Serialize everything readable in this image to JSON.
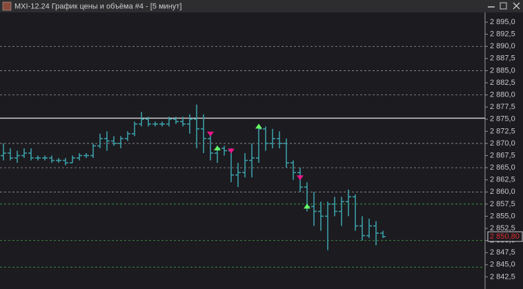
{
  "window_title": "MXI-12.24 График цены и объёма #4 - [5 минут]",
  "chart_data": {
    "type": "ohlc",
    "color": "#3a9fa8",
    "ylim": [
      2840,
      2897
    ],
    "yticks": [
      {
        "value": 2895,
        "label": "2 895,0"
      },
      {
        "value": 2892.5,
        "label": "2 892,5"
      },
      {
        "value": 2890,
        "label": "2 890,0"
      },
      {
        "value": 2887.5,
        "label": "2 887,5"
      },
      {
        "value": 2885,
        "label": "2 885,0"
      },
      {
        "value": 2882.5,
        "label": "2 882,5"
      },
      {
        "value": 2880,
        "label": "2 880,0"
      },
      {
        "value": 2877.5,
        "label": "2 877,5"
      },
      {
        "value": 2875,
        "label": "2 875,0"
      },
      {
        "value": 2872.5,
        "label": "2 872,5"
      },
      {
        "value": 2870,
        "label": "2 870,0"
      },
      {
        "value": 2867.5,
        "label": "2 867,5"
      },
      {
        "value": 2865,
        "label": "2 865,0"
      },
      {
        "value": 2862.5,
        "label": "2 862,5"
      },
      {
        "value": 2860,
        "label": "2 860,0"
      },
      {
        "value": 2857.5,
        "label": "2 857,5"
      },
      {
        "value": 2855,
        "label": "2 855,0"
      },
      {
        "value": 2852.5,
        "label": "2 852,5"
      },
      {
        "value": 2850,
        "label": "2 850,0"
      },
      {
        "value": 2847.5,
        "label": "2 847,5"
      },
      {
        "value": 2845,
        "label": "2 845,0"
      },
      {
        "value": 2842.5,
        "label": "2 842,5"
      }
    ],
    "grid_lines": [
      2890,
      2885,
      2880,
      2870,
      2865,
      2860
    ],
    "levels": [
      {
        "value": 2875.2,
        "color": "#d0d0d0",
        "dashed": false
      },
      {
        "value": 2857.5,
        "color": "#3f9a3f",
        "dashed": true
      },
      {
        "value": 2850,
        "color": "#3f9a3f",
        "dashed": true
      },
      {
        "value": 2844.5,
        "color": "#3f9a3f",
        "dashed": true
      }
    ],
    "last_price": {
      "value": 2850.8,
      "label": "2 850,80"
    },
    "open": [
      2867.5,
      2868,
      2867,
      2867.5,
      2868,
      2867,
      2867,
      2867,
      2866.5,
      2866.5,
      2866,
      2867,
      2867.5,
      2867.5,
      2869.5,
      2871,
      2870.5,
      2870,
      2871,
      2872,
      2874,
      2875,
      2874,
      2874,
      2874,
      2875,
      2874.5,
      2874,
      2875,
      2873,
      2871,
      2868,
      2869,
      2868.5,
      2863.5,
      2864,
      2866.5,
      2867,
      2873,
      2870,
      2871,
      2870,
      2866,
      2864,
      2861,
      2857,
      2856,
      2855,
      2857.5,
      2856,
      2858,
      2859,
      2853,
      2851,
      2853,
      2851.5
    ],
    "high": [
      2870,
      2869,
      2868.5,
      2869,
      2869,
      2867.5,
      2867.5,
      2867.5,
      2867,
      2867,
      2867.5,
      2868,
      2868,
      2870,
      2872,
      2872.5,
      2871.5,
      2871.5,
      2872.5,
      2874.5,
      2876.5,
      2875.5,
      2874.5,
      2874.5,
      2875.5,
      2875.5,
      2875.5,
      2876,
      2878,
      2876,
      2872,
      2869.5,
      2869.5,
      2869,
      2866,
      2868,
      2870,
      2873.5,
      2873.5,
      2873,
      2872.5,
      2871,
      2866.5,
      2865,
      2862,
      2860,
      2858,
      2858,
      2859,
      2859,
      2860.5,
      2859.5,
      2855,
      2854.5,
      2854,
      2852
    ],
    "low": [
      2866.5,
      2866.5,
      2866,
      2867,
      2866.5,
      2866.5,
      2866.5,
      2866,
      2866,
      2865.5,
      2866,
      2866.5,
      2867,
      2867,
      2869,
      2868.5,
      2869.5,
      2869,
      2870.5,
      2871.5,
      2873.5,
      2873.5,
      2873.5,
      2873.5,
      2873.5,
      2874,
      2873.5,
      2872,
      2869,
      2868,
      2866.5,
      2866,
      2867.5,
      2862,
      2861,
      2863,
      2863,
      2866,
      2868.5,
      2869,
      2869,
      2865,
      2862.5,
      2860,
      2856,
      2853,
      2852,
      2848,
      2855,
      2853,
      2855,
      2852,
      2850,
      2850.5,
      2849,
      2850.5
    ],
    "close": [
      2868,
      2867,
      2867.5,
      2868,
      2867,
      2867,
      2867,
      2866.5,
      2866.5,
      2866,
      2867,
      2867.5,
      2867.5,
      2869.5,
      2871,
      2870.5,
      2870,
      2871,
      2872,
      2874,
      2875,
      2874,
      2874,
      2874,
      2875,
      2874.5,
      2874,
      2875,
      2873,
      2871,
      2868,
      2869,
      2868.5,
      2863.5,
      2864,
      2866.5,
      2867,
      2873,
      2870,
      2871,
      2870,
      2866,
      2864,
      2861,
      2857,
      2856,
      2855,
      2857.5,
      2856,
      2858,
      2859,
      2853,
      2851,
      2853,
      2851.5,
      2850.8
    ],
    "signal_colors": {
      "buy": "#66ff66",
      "sell": "#e8168a"
    },
    "signals": [
      {
        "bar": 30,
        "price": 2872,
        "side": "sell"
      },
      {
        "bar": 31,
        "price": 2869,
        "side": "buy"
      },
      {
        "bar": 33,
        "price": 2868.5,
        "side": "sell"
      },
      {
        "bar": 37,
        "price": 2873.5,
        "side": "buy"
      },
      {
        "bar": 43,
        "price": 2863,
        "side": "sell"
      },
      {
        "bar": 44,
        "price": 2857,
        "side": "buy"
      }
    ]
  }
}
